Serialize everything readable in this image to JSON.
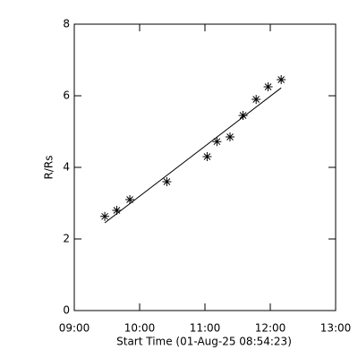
{
  "chart_data": {
    "type": "scatter",
    "x_label": "Start Time (01-Aug-25 08:54:23)",
    "y_label": "R/Rs",
    "xlim": [
      "09:00",
      "13:00"
    ],
    "xticks": [
      "09:00",
      "10:00",
      "11:00",
      "12:00",
      "13:00"
    ],
    "ylim": [
      0,
      8
    ],
    "yticks": [
      0,
      2,
      4,
      6,
      8
    ],
    "series": [
      {
        "style": "asterisk",
        "color": "#000000",
        "x": [
          "09:28",
          "09:39",
          "09:51",
          "10:25",
          "11:02",
          "11:11",
          "11:23",
          "11:35",
          "11:47",
          "11:58",
          "12:10"
        ],
        "values": [
          2.63,
          2.8,
          3.1,
          3.6,
          4.3,
          4.72,
          4.85,
          5.45,
          5.9,
          6.25,
          6.45
        ]
      },
      {
        "style": "line",
        "color": "#000000",
        "x": [
          "09:28",
          "12:10"
        ],
        "values": [
          2.45,
          6.22
        ]
      }
    ]
  }
}
